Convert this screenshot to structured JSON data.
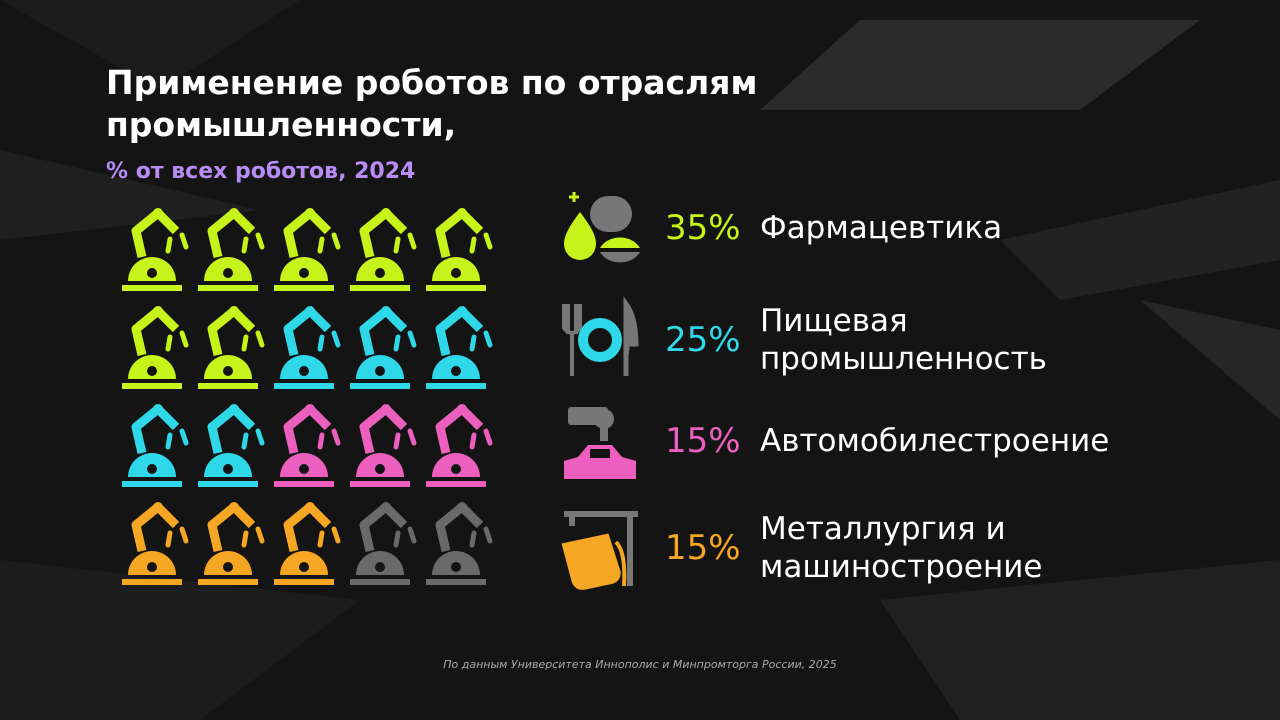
{
  "chart_data": {
    "type": "pictogram",
    "title": "Применение роботов по отраслям промышленности,",
    "subtitle": "% от всех роботов, 2024",
    "categories": [
      "Фармацевтика",
      "Пищевая промышленность",
      "Автомобилестроение",
      "Металлургия и машиностроение"
    ],
    "values": [
      35,
      25,
      15,
      15
    ],
    "value_labels": [
      "35%",
      "25%",
      "15%",
      "15%"
    ],
    "colors": [
      "#c6f31a",
      "#2fd8e8",
      "#ec5fbf",
      "#f5a623"
    ],
    "source": "По данным Университета Иннополис и Минпромторга России, 2025"
  }
}
